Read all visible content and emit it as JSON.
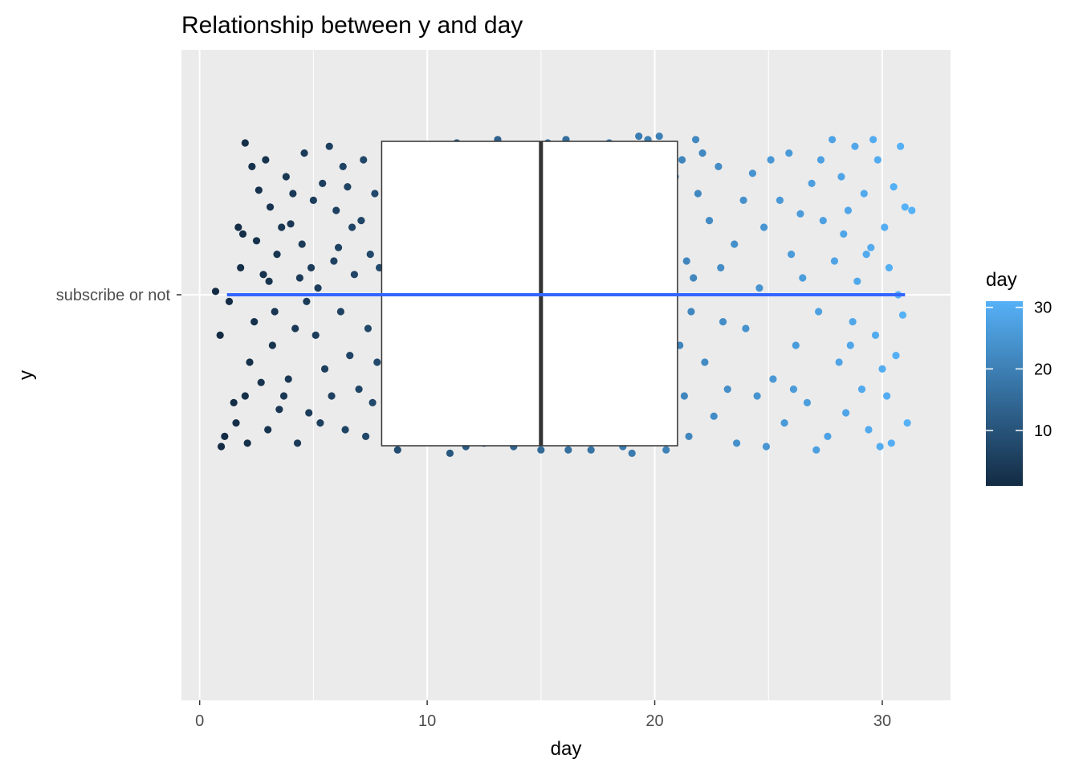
{
  "chart_data": {
    "type": "scatter",
    "title": "Relationship between y and day",
    "xlabel": "day",
    "ylabel": "y",
    "xlim": [
      -0.8,
      33
    ],
    "x_ticks": [
      0,
      10,
      20,
      30
    ],
    "y_categories": [
      "subscribe or not"
    ],
    "grid": true,
    "layers": [
      "jitter points",
      "boxplot",
      "fitted line"
    ],
    "color_scale": {
      "variable": "day",
      "low_color": "#132B43",
      "high_color": "#56B1F7",
      "range": [
        1,
        31
      ],
      "breaks": [
        10,
        20,
        30
      ]
    },
    "legend": {
      "title": "day",
      "position": "right"
    },
    "boxplot": {
      "q1": 8,
      "median": 15,
      "q3": 21,
      "fill": "#ffffff",
      "outline": "#333333"
    },
    "fit_line": {
      "x_start": 1.2,
      "x_end": 31,
      "y": "subscribe or not",
      "color": "#3366FF"
    },
    "points": [
      [
        1.3,
        -0.02
      ],
      [
        0.7,
        0.01
      ],
      [
        0.9,
        -0.12
      ],
      [
        2.0,
        0.45
      ],
      [
        1.7,
        0.2
      ],
      [
        1.5,
        -0.32
      ],
      [
        1.6,
        -0.38
      ],
      [
        1.1,
        -0.42
      ],
      [
        0.95,
        -0.45
      ],
      [
        1.9,
        0.18
      ],
      [
        2.3,
        0.38
      ],
      [
        2.8,
        0.06
      ],
      [
        2.6,
        0.31
      ],
      [
        2.4,
        -0.08
      ],
      [
        2.2,
        -0.2
      ],
      [
        2.0,
        -0.3
      ],
      [
        2.7,
        -0.26
      ],
      [
        3.1,
        0.26
      ],
      [
        3.4,
        0.12
      ],
      [
        3.2,
        -0.15
      ],
      [
        3.0,
        -0.4
      ],
      [
        2.9,
        0.4
      ],
      [
        3.5,
        -0.34
      ],
      [
        3.6,
        0.2
      ],
      [
        3.3,
        -0.05
      ],
      [
        3.8,
        0.35
      ],
      [
        4.0,
        0.21
      ],
      [
        4.2,
        -0.1
      ],
      [
        4.1,
        0.3
      ],
      [
        3.9,
        -0.25
      ],
      [
        4.4,
        0.05
      ],
      [
        4.6,
        0.42
      ],
      [
        4.8,
        -0.35
      ],
      [
        4.5,
        0.15
      ],
      [
        4.3,
        -0.44
      ],
      [
        5.0,
        0.28
      ],
      [
        5.1,
        -0.12
      ],
      [
        5.4,
        0.33
      ],
      [
        5.2,
        0.02
      ],
      [
        5.5,
        -0.22
      ],
      [
        5.7,
        0.44
      ],
      [
        5.9,
        0.1
      ],
      [
        5.8,
        -0.3
      ],
      [
        6.0,
        0.25
      ],
      [
        6.2,
        -0.05
      ],
      [
        6.3,
        0.38
      ],
      [
        6.4,
        -0.4
      ],
      [
        6.1,
        0.14
      ],
      [
        6.6,
        -0.18
      ],
      [
        6.5,
        0.32
      ],
      [
        6.8,
        0.06
      ],
      [
        7.0,
        -0.28
      ],
      [
        7.1,
        0.22
      ],
      [
        7.3,
        -0.42
      ],
      [
        7.2,
        0.4
      ],
      [
        7.5,
        0.12
      ],
      [
        7.4,
        -0.1
      ],
      [
        7.7,
        0.3
      ],
      [
        7.6,
        -0.32
      ],
      [
        7.9,
        0.08
      ],
      [
        1.8,
        0.08
      ],
      [
        2.5,
        0.16
      ],
      [
        3.7,
        -0.3
      ],
      [
        4.9,
        0.08
      ],
      [
        5.3,
        -0.38
      ],
      [
        6.7,
        0.2
      ],
      [
        7.8,
        -0.2
      ],
      [
        2.1,
        -0.44
      ],
      [
        3.05,
        0.04
      ],
      [
        4.7,
        -0.02
      ],
      [
        8.7,
        -0.46
      ],
      [
        11.0,
        -0.47
      ],
      [
        11.3,
        0.45
      ],
      [
        13.1,
        0.46
      ],
      [
        14.2,
        0.44
      ],
      [
        15.0,
        -0.46
      ],
      [
        15.3,
        0.45
      ],
      [
        16.2,
        -0.46
      ],
      [
        16.1,
        0.46
      ],
      [
        17.2,
        -0.46
      ],
      [
        18.0,
        0.45
      ],
      [
        18.6,
        -0.45
      ],
      [
        19.0,
        -0.47
      ],
      [
        19.3,
        0.47
      ],
      [
        19.7,
        0.46
      ],
      [
        20.2,
        0.47
      ],
      [
        20.5,
        -0.46
      ],
      [
        11.7,
        -0.45
      ],
      [
        12.5,
        -0.44
      ],
      [
        13.8,
        -0.45
      ],
      [
        21.2,
        0.4
      ],
      [
        21.4,
        0.1
      ],
      [
        21.6,
        -0.05
      ],
      [
        21.9,
        0.3
      ],
      [
        22.2,
        -0.2
      ],
      [
        22.4,
        0.22
      ],
      [
        22.6,
        -0.36
      ],
      [
        21.3,
        -0.3
      ],
      [
        21.8,
        0.46
      ],
      [
        22.9,
        0.08
      ],
      [
        23.2,
        -0.28
      ],
      [
        22.8,
        0.38
      ],
      [
        23.6,
        -0.44
      ],
      [
        23.5,
        0.15
      ],
      [
        24.0,
        -0.1
      ],
      [
        24.3,
        0.36
      ],
      [
        24.6,
        0.02
      ],
      [
        24.9,
        -0.45
      ],
      [
        24.8,
        0.2
      ],
      [
        25.2,
        -0.25
      ],
      [
        25.5,
        0.28
      ],
      [
        25.7,
        -0.38
      ],
      [
        26.0,
        0.12
      ],
      [
        26.2,
        -0.15
      ],
      [
        25.9,
        0.42
      ],
      [
        26.5,
        0.05
      ],
      [
        26.7,
        -0.32
      ],
      [
        26.9,
        0.33
      ],
      [
        27.2,
        -0.05
      ],
      [
        27.4,
        0.22
      ],
      [
        27.6,
        -0.42
      ],
      [
        27.8,
        0.46
      ],
      [
        27.9,
        0.1
      ],
      [
        28.1,
        -0.2
      ],
      [
        28.2,
        0.35
      ],
      [
        28.4,
        -0.35
      ],
      [
        28.5,
        0.25
      ],
      [
        28.7,
        -0.08
      ],
      [
        28.8,
        0.44
      ],
      [
        28.9,
        0.04
      ],
      [
        29.1,
        -0.28
      ],
      [
        29.2,
        0.3
      ],
      [
        29.4,
        -0.4
      ],
      [
        29.5,
        0.14
      ],
      [
        29.7,
        -0.12
      ],
      [
        29.8,
        0.4
      ],
      [
        29.9,
        -0.45
      ],
      [
        30.1,
        0.2
      ],
      [
        30.2,
        -0.3
      ],
      [
        30.3,
        0.08
      ],
      [
        30.5,
        0.32
      ],
      [
        30.6,
        -0.18
      ],
      [
        30.8,
        0.44
      ],
      [
        30.9,
        -0.06
      ],
      [
        31.0,
        0.26
      ],
      [
        31.1,
        -0.38
      ],
      [
        30.4,
        -0.44
      ],
      [
        29.6,
        0.46
      ],
      [
        28.3,
        0.18
      ],
      [
        27.1,
        -0.46
      ],
      [
        26.4,
        0.24
      ],
      [
        25.1,
        0.4
      ],
      [
        24.5,
        -0.3
      ],
      [
        23.9,
        0.28
      ],
      [
        23.0,
        -0.08
      ],
      [
        22.1,
        0.42
      ],
      [
        21.5,
        -0.42
      ],
      [
        20.9,
        0.35
      ],
      [
        21.1,
        -0.15
      ],
      [
        20.8,
        0.15
      ],
      [
        20.7,
        -0.28
      ],
      [
        20.6,
        0.26
      ],
      [
        21.7,
        0.05
      ],
      [
        28.6,
        -0.15
      ],
      [
        29.3,
        0.12
      ],
      [
        30.7,
        0.0
      ],
      [
        30.0,
        -0.22
      ],
      [
        27.3,
        0.4
      ],
      [
        26.1,
        -0.28
      ],
      [
        31.3,
        0.25
      ]
    ]
  }
}
